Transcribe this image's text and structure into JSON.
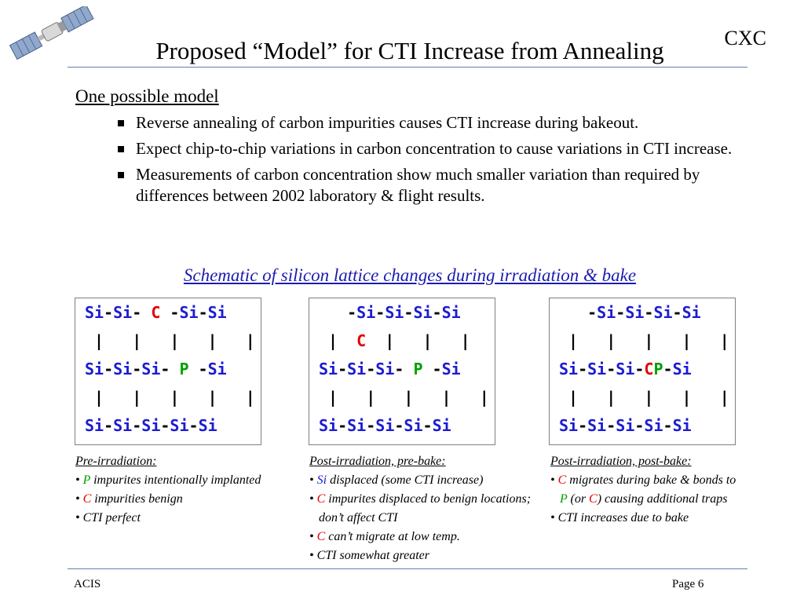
{
  "header": {
    "title": "Proposed “Model” for CTI Increase from Annealing",
    "org": "CXC"
  },
  "body": {
    "heading": "One possible model",
    "bullets": [
      "Reverse annealing of carbon impurities causes CTI increase during bakeout.",
      "Expect chip-to-chip variations in carbon concentration to cause variations in CTI increase.",
      "Measurements of carbon concentration show much smaller variation than required by differences between 2002 laboratory & flight results."
    ],
    "schematic_title": "Schematic of silicon lattice changes during irradiation & bake"
  },
  "lattices": {
    "pre": {
      "rows": [
        [
          {
            "t": "Si",
            "c": "si"
          },
          {
            "t": "-",
            "c": "bond"
          },
          {
            "t": "Si",
            "c": "si"
          },
          {
            "t": "- ",
            "c": "bond"
          },
          {
            "t": "C",
            "c": "cc"
          },
          {
            "t": " -",
            "c": "bond"
          },
          {
            "t": "Si",
            "c": "si"
          },
          {
            "t": "-",
            "c": "bond"
          },
          {
            "t": "Si",
            "c": "si"
          }
        ],
        [
          {
            "t": " |   |   |   |   |",
            "c": "bond"
          }
        ],
        [
          {
            "t": "Si",
            "c": "si"
          },
          {
            "t": "-",
            "c": "bond"
          },
          {
            "t": "Si",
            "c": "si"
          },
          {
            "t": "-",
            "c": "bond"
          },
          {
            "t": "Si",
            "c": "si"
          },
          {
            "t": "- ",
            "c": "bond"
          },
          {
            "t": "P",
            "c": "pp"
          },
          {
            "t": " -",
            "c": "bond"
          },
          {
            "t": "Si",
            "c": "si"
          }
        ],
        [
          {
            "t": " |   |   |   |   |",
            "c": "bond"
          }
        ],
        [
          {
            "t": "Si",
            "c": "si"
          },
          {
            "t": "-",
            "c": "bond"
          },
          {
            "t": "Si",
            "c": "si"
          },
          {
            "t": "-",
            "c": "bond"
          },
          {
            "t": "Si",
            "c": "si"
          },
          {
            "t": "-",
            "c": "bond"
          },
          {
            "t": "Si",
            "c": "si"
          },
          {
            "t": "-",
            "c": "bond"
          },
          {
            "t": "Si",
            "c": "si"
          }
        ]
      ]
    },
    "post_pre_bake": {
      "rows": [
        [
          {
            "t": "   -",
            "c": "bond"
          },
          {
            "t": "Si",
            "c": "si"
          },
          {
            "t": "-",
            "c": "bond"
          },
          {
            "t": "Si",
            "c": "si"
          },
          {
            "t": "-",
            "c": "bond"
          },
          {
            "t": "Si",
            "c": "si"
          },
          {
            "t": "-",
            "c": "bond"
          },
          {
            "t": "Si",
            "c": "si"
          }
        ],
        [
          {
            "t": " |  ",
            "c": "bond"
          },
          {
            "t": "C",
            "c": "cc"
          },
          {
            "t": "  |   |   |",
            "c": "bond"
          }
        ],
        [
          {
            "t": "Si",
            "c": "si"
          },
          {
            "t": "-",
            "c": "bond"
          },
          {
            "t": "Si",
            "c": "si"
          },
          {
            "t": "-",
            "c": "bond"
          },
          {
            "t": "Si",
            "c": "si"
          },
          {
            "t": "- ",
            "c": "bond"
          },
          {
            "t": "P",
            "c": "pp"
          },
          {
            "t": " -",
            "c": "bond"
          },
          {
            "t": "Si",
            "c": "si"
          }
        ],
        [
          {
            "t": " |   |   |   |   |",
            "c": "bond"
          }
        ],
        [
          {
            "t": "Si",
            "c": "si"
          },
          {
            "t": "-",
            "c": "bond"
          },
          {
            "t": "Si",
            "c": "si"
          },
          {
            "t": "-",
            "c": "bond"
          },
          {
            "t": "Si",
            "c": "si"
          },
          {
            "t": "-",
            "c": "bond"
          },
          {
            "t": "Si",
            "c": "si"
          },
          {
            "t": "-",
            "c": "bond"
          },
          {
            "t": "Si",
            "c": "si"
          }
        ]
      ]
    },
    "post_bake": {
      "rows": [
        [
          {
            "t": "   -",
            "c": "bond"
          },
          {
            "t": "Si",
            "c": "si"
          },
          {
            "t": "-",
            "c": "bond"
          },
          {
            "t": "Si",
            "c": "si"
          },
          {
            "t": "-",
            "c": "bond"
          },
          {
            "t": "Si",
            "c": "si"
          },
          {
            "t": "-",
            "c": "bond"
          },
          {
            "t": "Si",
            "c": "si"
          }
        ],
        [
          {
            "t": " |   |   |   |   |",
            "c": "bond"
          }
        ],
        [
          {
            "t": "Si",
            "c": "si"
          },
          {
            "t": "-",
            "c": "bond"
          },
          {
            "t": "Si",
            "c": "si"
          },
          {
            "t": "-",
            "c": "bond"
          },
          {
            "t": "Si",
            "c": "si"
          },
          {
            "t": "-",
            "c": "bond"
          },
          {
            "t": "C",
            "c": "cc"
          },
          {
            "t": "P",
            "c": "pp"
          },
          {
            "t": "-",
            "c": "bond"
          },
          {
            "t": "Si",
            "c": "si"
          }
        ],
        [
          {
            "t": " |   |   |   |   |",
            "c": "bond"
          }
        ],
        [
          {
            "t": "Si",
            "c": "si"
          },
          {
            "t": "-",
            "c": "bond"
          },
          {
            "t": "Si",
            "c": "si"
          },
          {
            "t": "-",
            "c": "bond"
          },
          {
            "t": "Si",
            "c": "si"
          },
          {
            "t": "-",
            "c": "bond"
          },
          {
            "t": "Si",
            "c": "si"
          },
          {
            "t": "-",
            "c": "bond"
          },
          {
            "t": "Si",
            "c": "si"
          }
        ]
      ]
    }
  },
  "captions": {
    "pre": {
      "head": "Pre-irradiation:",
      "items": [
        [
          {
            "t": "•  ",
            "c": ""
          },
          {
            "t": "P",
            "c": "green"
          },
          {
            "t": " impurites intentionally implanted",
            "c": ""
          }
        ],
        [
          {
            "t": "•  ",
            "c": ""
          },
          {
            "t": "C",
            "c": "red"
          },
          {
            "t": " impurities benign",
            "c": ""
          }
        ],
        [
          {
            "t": "•  CTI perfect",
            "c": ""
          }
        ]
      ]
    },
    "post_pre_bake": {
      "head": "Post-irradiation, pre-bake:",
      "items": [
        [
          {
            "t": "•  ",
            "c": ""
          },
          {
            "t": "Si",
            "c": "blue"
          },
          {
            "t": " displaced (some CTI increase)",
            "c": ""
          }
        ],
        [
          {
            "t": "•  ",
            "c": ""
          },
          {
            "t": "C",
            "c": "red"
          },
          {
            "t": " impurites displaced to benign locations;  don’t affect CTI",
            "c": ""
          }
        ],
        [
          {
            "t": "•  ",
            "c": ""
          },
          {
            "t": "C",
            "c": "red"
          },
          {
            "t": " can’t migrate at low temp.",
            "c": ""
          }
        ],
        [
          {
            "t": "•  CTI somewhat greater",
            "c": ""
          }
        ]
      ]
    },
    "post_bake": {
      "head": "Post-irradiation, post-bake:",
      "items": [
        [
          {
            "t": "•  ",
            "c": ""
          },
          {
            "t": "C",
            "c": "red"
          },
          {
            "t": " migrates during bake & bonds to ",
            "c": ""
          },
          {
            "t": "P",
            "c": "green"
          },
          {
            "t": " (or ",
            "c": ""
          },
          {
            "t": "C",
            "c": "red"
          },
          {
            "t": ") causing additional traps",
            "c": ""
          }
        ],
        [
          {
            "t": "• CTI increases due to bake",
            "c": ""
          }
        ]
      ]
    }
  },
  "footer": {
    "left": "ACIS",
    "right": "Page 6"
  },
  "colors": {
    "silicon": "#1c1cd2",
    "carbon": "#e00000",
    "phosphorus": "#00a000",
    "schematic_title": "#1c1cb0",
    "rule": "#5b7fb5"
  }
}
